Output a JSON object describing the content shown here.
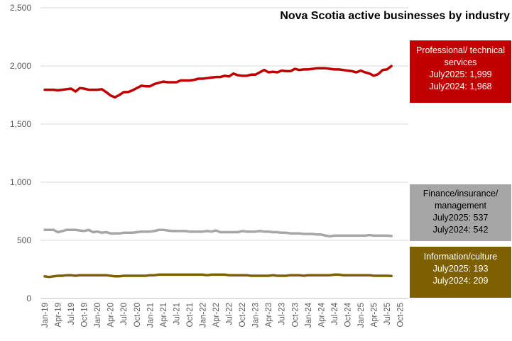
{
  "chart_data": {
    "type": "line",
    "title": "Nova Scotia active businesses by industry",
    "xlabel": "",
    "ylabel": "",
    "ylim": [
      0,
      2500
    ],
    "yticks": [
      "0",
      "500",
      "1,000",
      "1,500",
      "2,000",
      "2,500"
    ],
    "xtick_labels": [
      "Jan-19",
      "Apr-19",
      "Jul-19",
      "Oct-19",
      "Jan-20",
      "Apr-20",
      "Jul-20",
      "Oct-20",
      "Jan-21",
      "Apr-21",
      "Jul-21",
      "Oct-21",
      "Jan-22",
      "Apr-22",
      "Jul-22",
      "Oct-22",
      "Jan-23",
      "Apr-23",
      "Jul-23",
      "Oct-23",
      "Jan-24",
      "Apr-24",
      "Jul-24",
      "Oct-24",
      "Jan-25",
      "Apr-25",
      "Jul-25",
      "Oct-25"
    ],
    "grid": "horizontal",
    "series": [
      {
        "name": "Professional/ technical services",
        "color": "#c00000",
        "values": [
          1795,
          1795,
          1795,
          1790,
          1795,
          1800,
          1805,
          1780,
          1810,
          1805,
          1795,
          1795,
          1795,
          1800,
          1775,
          1745,
          1730,
          1750,
          1775,
          1775,
          1790,
          1810,
          1830,
          1825,
          1825,
          1845,
          1855,
          1865,
          1860,
          1860,
          1860,
          1875,
          1875,
          1875,
          1880,
          1890,
          1890,
          1895,
          1900,
          1905,
          1905,
          1915,
          1910,
          1935,
          1920,
          1915,
          1915,
          1925,
          1925,
          1945,
          1965,
          1945,
          1950,
          1945,
          1960,
          1955,
          1955,
          1975,
          1965,
          1970,
          1970,
          1975,
          1980,
          1980,
          1980,
          1975,
          1970,
          1970,
          1965,
          1960,
          1955,
          1945,
          1960,
          1945,
          1935,
          1915,
          1930,
          1965,
          1970,
          1999
        ]
      },
      {
        "name": "Finance/insurance/ management",
        "color": "#a6a6a6",
        "values": [
          590,
          590,
          590,
          570,
          580,
          590,
          590,
          590,
          585,
          580,
          590,
          570,
          575,
          565,
          570,
          560,
          560,
          560,
          565,
          565,
          565,
          570,
          575,
          575,
          575,
          580,
          590,
          590,
          585,
          580,
          580,
          580,
          580,
          575,
          575,
          575,
          575,
          580,
          575,
          585,
          570,
          570,
          570,
          570,
          570,
          580,
          575,
          575,
          575,
          580,
          575,
          575,
          570,
          570,
          565,
          565,
          560,
          560,
          560,
          555,
          555,
          555,
          550,
          550,
          540,
          535,
          540,
          540,
          540,
          540,
          540,
          540,
          540,
          540,
          545,
          540,
          540,
          540,
          540,
          537
        ]
      },
      {
        "name": "Information/culture",
        "color": "#7f6000",
        "values": [
          190,
          185,
          190,
          195,
          195,
          200,
          200,
          195,
          200,
          200,
          200,
          200,
          200,
          200,
          200,
          195,
          190,
          190,
          195,
          195,
          195,
          195,
          195,
          195,
          200,
          200,
          205,
          205,
          205,
          205,
          205,
          205,
          205,
          205,
          205,
          205,
          205,
          200,
          205,
          205,
          205,
          205,
          200,
          200,
          200,
          200,
          200,
          195,
          195,
          195,
          195,
          195,
          200,
          195,
          195,
          195,
          200,
          200,
          200,
          195,
          200,
          200,
          200,
          200,
          200,
          200,
          205,
          205,
          200,
          200,
          200,
          200,
          200,
          200,
          200,
          195,
          195,
          195,
          195,
          193
        ]
      }
    ]
  },
  "title": "Nova Scotia active businesses by industry",
  "labels": {
    "prof": {
      "line1": "Professional/ technical",
      "line2": "services",
      "line3": "July2025:  1,999",
      "line4": "July2024:  1,968"
    },
    "fin": {
      "line1": "Finance/insurance/",
      "line2": "management",
      "line3": "July2025:  537",
      "line4": "July2024:  542"
    },
    "info": {
      "line1": "Information/culture",
      "line2": "July2025:  193",
      "line3": "July2024:  209"
    }
  }
}
